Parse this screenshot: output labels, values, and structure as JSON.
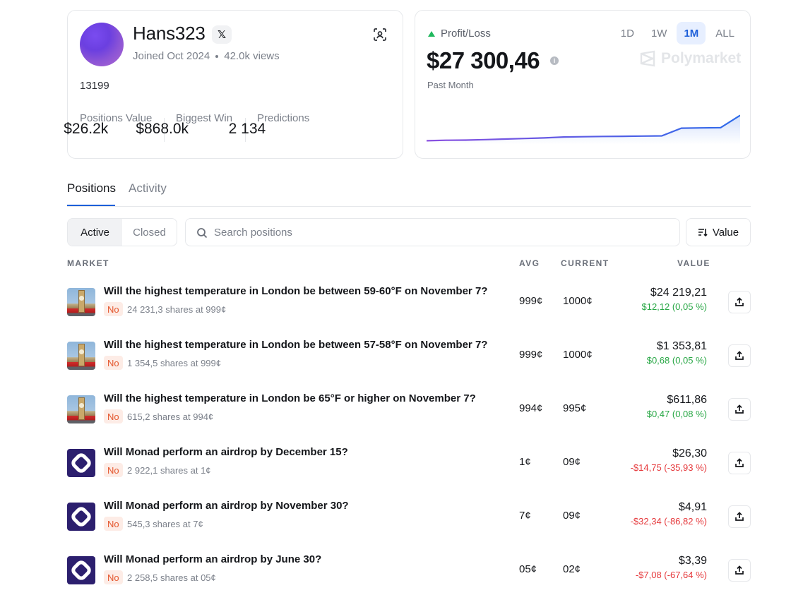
{
  "profile": {
    "username": "Hans323",
    "x_label": "𝕏",
    "joined": "Joined Oct 2024",
    "views": "42.0k views",
    "id": "13199",
    "stats": [
      {
        "label": "Positions Value",
        "value": "$26.2k"
      },
      {
        "label": "Biggest Win",
        "value": "$868.0k"
      },
      {
        "label": "Predictions",
        "value": "2 134"
      }
    ]
  },
  "pnl": {
    "label": "Profit/Loss",
    "amount": "$27 300,46",
    "period": "Past Month",
    "ranges": [
      "1D",
      "1W",
      "1M",
      "ALL"
    ],
    "active_range": "1M",
    "brand": "Polymarket",
    "up_color": "#1fb85d",
    "chart_values": [
      0,
      0.5,
      0.7,
      1.2,
      1.8,
      2.4,
      3.0,
      4.0,
      4.3,
      4.6,
      4.8,
      5.0,
      5.2,
      13.5,
      13.8,
      14.0,
      27.3
    ]
  },
  "tabs": [
    "Positions",
    "Activity"
  ],
  "filter": {
    "active": "Active",
    "closed": "Closed"
  },
  "search": {
    "placeholder": "Search positions"
  },
  "sort": {
    "label": "Value"
  },
  "columns": {
    "market": "MARKET",
    "avg": "AVG",
    "current": "CURRENT",
    "value": "VALUE"
  },
  "positions": [
    {
      "title": "Will the highest temperature in London be between 59-60°F on November 7?",
      "outcome": "No",
      "shares": "24 231,3 shares at 999¢",
      "avg": "999¢",
      "current": "1000¢",
      "value": "$24 219,21",
      "delta": "$12,12 (0,05 %)",
      "sign": "pos",
      "icon": "london-icon"
    },
    {
      "title": "Will the highest temperature in London be between 57-58°F on November 7?",
      "outcome": "No",
      "shares": "1 354,5 shares at 999¢",
      "avg": "999¢",
      "current": "1000¢",
      "value": "$1 353,81",
      "delta": "$0,68 (0,05 %)",
      "sign": "pos",
      "icon": "london-icon"
    },
    {
      "title": "Will the highest temperature in London be 65°F or higher on November 7?",
      "outcome": "No",
      "shares": "615,2 shares at 994¢",
      "avg": "994¢",
      "current": "995¢",
      "value": "$611,86",
      "delta": "$0,47 (0,08 %)",
      "sign": "pos",
      "icon": "london-icon"
    },
    {
      "title": "Will Monad perform an airdrop by December 15?",
      "outcome": "No",
      "shares": "2 922,1 shares at 1¢",
      "avg": "1¢",
      "current": "09¢",
      "value": "$26,30",
      "delta": "-$14,75 (-35,93 %)",
      "sign": "neg",
      "icon": "monad-icon"
    },
    {
      "title": "Will Monad perform an airdrop by November 30?",
      "outcome": "No",
      "shares": "545,3 shares at 7¢",
      "avg": "7¢",
      "current": "09¢",
      "value": "$4,91",
      "delta": "-$32,34 (-86,82 %)",
      "sign": "neg",
      "icon": "monad-icon"
    },
    {
      "title": "Will Monad perform an airdrop by June 30?",
      "outcome": "No",
      "shares": "2 258,5 shares at 05¢",
      "avg": "05¢",
      "current": "02¢",
      "value": "$3,39",
      "delta": "-$7,08 (-67,64 %)",
      "sign": "neg",
      "icon": "monad-icon"
    }
  ]
}
